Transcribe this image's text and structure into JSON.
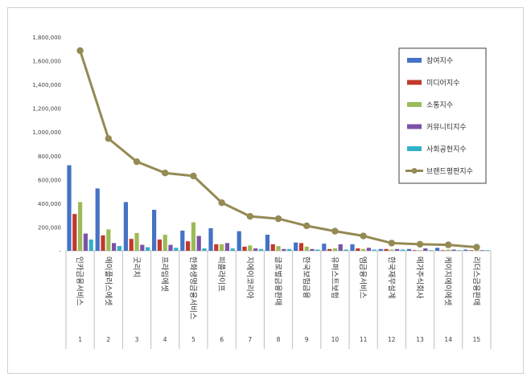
{
  "chart_data": {
    "type": "bar",
    "title": "",
    "xlabel": "",
    "ylabel": "",
    "ylim": [
      0,
      1800000
    ],
    "yticks": [
      0,
      200000,
      400000,
      600000,
      800000,
      1000000,
      1200000,
      1400000,
      1600000,
      1800000
    ],
    "ytick_labels": [
      "-",
      "200,000",
      "400,000",
      "600,000",
      "800,000",
      "1,000,000",
      "1,200,000",
      "1,400,000",
      "1,600,000",
      "1,800,000"
    ],
    "grid": false,
    "legend_position": "top-right",
    "categories": [
      "인카금융서비스",
      "에이플러스에셋",
      "굿리치",
      "프라임에셋",
      "한화생명금융서비스",
      "피플라이프",
      "지에이코리아",
      "글로벌금융판매",
      "한국보험금융",
      "유퍼스트보험",
      "엠금융서비스",
      "한국재무설계",
      "메가주식회사",
      "케이지에이에셋",
      "리더스금융판매"
    ],
    "ranks": [
      "1",
      "2",
      "3",
      "4",
      "5",
      "6",
      "7",
      "8",
      "9",
      "10",
      "11",
      "12",
      "13",
      "14",
      "15"
    ],
    "series": [
      {
        "name": "참여지수",
        "type": "bar",
        "color": "#4472c4",
        "values": [
          720000,
          525000,
          410000,
          345000,
          170000,
          190000,
          165000,
          135000,
          70000,
          60000,
          55000,
          15000,
          15000,
          25000,
          10000
        ]
      },
      {
        "name": "미디어지수",
        "type": "bar",
        "color": "#c0392b",
        "values": [
          310000,
          130000,
          100000,
          95000,
          80000,
          55000,
          35000,
          55000,
          65000,
          15000,
          20000,
          15000,
          5000,
          5000,
          5000
        ]
      },
      {
        "name": "소통지수",
        "type": "bar",
        "color": "#9bbb59",
        "values": [
          410000,
          180000,
          150000,
          135000,
          240000,
          55000,
          45000,
          40000,
          35000,
          20000,
          15000,
          10000,
          5000,
          10000,
          5000
        ]
      },
      {
        "name": "커뮤니티지수",
        "type": "bar",
        "color": "#7b52a8",
        "values": [
          145000,
          65000,
          50000,
          50000,
          125000,
          65000,
          20000,
          15000,
          15000,
          55000,
          25000,
          15000,
          20000,
          10000,
          5000
        ]
      },
      {
        "name": "사회공헌지수",
        "type": "bar",
        "color": "#31b0c9",
        "values": [
          95000,
          40000,
          30000,
          25000,
          20000,
          20000,
          15000,
          15000,
          10000,
          10000,
          10000,
          10000,
          5000,
          5000,
          5000
        ]
      },
      {
        "name": "브랜드평판지수",
        "type": "line",
        "color": "#948a54",
        "values": [
          1685000,
          945000,
          750000,
          655000,
          630000,
          405000,
          290000,
          270000,
          210000,
          165000,
          125000,
          65000,
          55000,
          50000,
          30000
        ]
      }
    ]
  }
}
